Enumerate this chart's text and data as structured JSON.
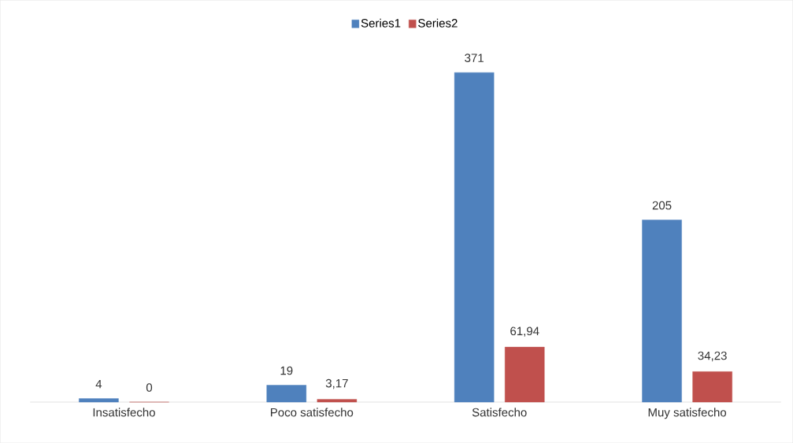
{
  "chart_data": {
    "type": "bar",
    "categories": [
      "Insatisfecho",
      "Poco satisfecho",
      "Satisfecho",
      "Muy satisfecho"
    ],
    "series": [
      {
        "name": "Series1",
        "color": "#4f81bd",
        "values": [
          4,
          19,
          371,
          205
        ],
        "value_labels": [
          "4",
          "19",
          "371",
          "205"
        ]
      },
      {
        "name": "Series2",
        "color": "#c0504d",
        "values": [
          0,
          3.17,
          61.94,
          34.23
        ],
        "value_labels": [
          "0",
          "3,17",
          "61,94",
          "34,23"
        ]
      }
    ],
    "legend": "top"
  }
}
